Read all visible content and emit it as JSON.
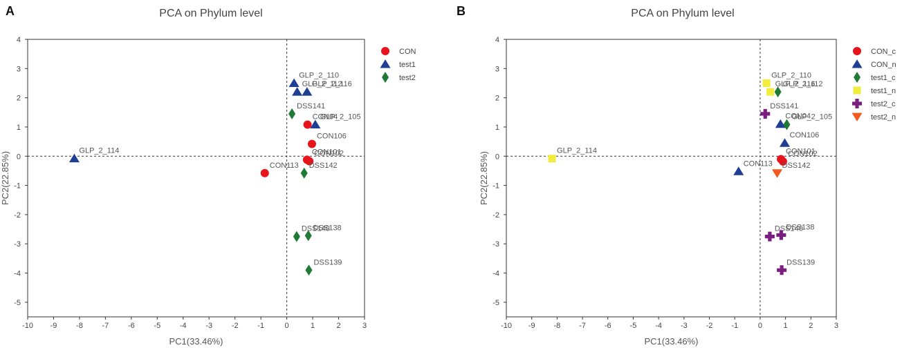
{
  "chart_data": [
    {
      "type": "scatter",
      "panel_letter": "A",
      "title": "PCA on Phylum level",
      "xlabel": "PC1(33.46%)",
      "ylabel": "PC2(22.85%)",
      "xlim": [
        -10,
        3
      ],
      "ylim": [
        -5.5,
        4
      ],
      "xticks": [
        -10,
        -9,
        -8,
        -7,
        -6,
        -5,
        -4,
        -3,
        -2,
        -1,
        0,
        1,
        2,
        3
      ],
      "yticks": [
        -5,
        -4,
        -3,
        -2,
        -1,
        0,
        1,
        2,
        3,
        4
      ],
      "reference_lines": {
        "x": 0,
        "y": 0
      },
      "legend_position": "top-right",
      "series": [
        {
          "name": "CON",
          "marker": "circle",
          "color": "#e8141b",
          "points": [
            {
              "label": "CON04",
              "x": 0.8,
              "y": 1.08
            },
            {
              "label": "CON106",
              "x": 0.97,
              "y": 0.42
            },
            {
              "label": "CON101",
              "x": 0.78,
              "y": -0.12
            },
            {
              "label": "CON102",
              "x": 0.87,
              "y": -0.17
            },
            {
              "label": "CON113",
              "x": -0.85,
              "y": -0.58
            }
          ]
        },
        {
          "name": "test1",
          "marker": "triangle",
          "color": "#1f3f95",
          "points": [
            {
              "label": "GLP_2_110",
              "x": 0.28,
              "y": 2.5
            },
            {
              "label": "GLP_2_112",
              "x": 0.4,
              "y": 2.2
            },
            {
              "label": "GLP_2_116",
              "x": 0.78,
              "y": 2.2
            },
            {
              "label": "GLP_2_105",
              "x": 1.1,
              "y": 1.08
            },
            {
              "label": "GLP_2_114",
              "x": -8.2,
              "y": -0.08
            }
          ]
        },
        {
          "name": "test2",
          "marker": "diamond",
          "color": "#1e7a34",
          "points": [
            {
              "label": "DSS141",
              "x": 0.2,
              "y": 1.45
            },
            {
              "label": "DSS142",
              "x": 0.67,
              "y": -0.58
            },
            {
              "label": "DSS140",
              "x": 0.38,
              "y": -2.75
            },
            {
              "label": "DSS138",
              "x": 0.83,
              "y": -2.72
            },
            {
              "label": "DSS139",
              "x": 0.85,
              "y": -3.9
            }
          ]
        }
      ]
    },
    {
      "type": "scatter",
      "panel_letter": "B",
      "title": "PCA on Phylum level",
      "xlabel": "PC1(33.46%)",
      "ylabel": "PC2(22.85%)",
      "xlim": [
        -10,
        3
      ],
      "ylim": [
        -5.5,
        4
      ],
      "xticks": [
        -10,
        -9,
        -8,
        -7,
        -6,
        -5,
        -4,
        -3,
        -2,
        -1,
        0,
        1,
        2,
        3
      ],
      "yticks": [
        -5,
        -4,
        -3,
        -2,
        -1,
        0,
        1,
        2,
        3,
        4
      ],
      "reference_lines": {
        "x": 0,
        "y": 0
      },
      "legend_position": "top-right",
      "series": [
        {
          "name": "CON_c",
          "marker": "circle",
          "color": "#e8141b",
          "points": [
            {
              "label": "CON101",
              "x": 0.82,
              "y": -0.1
            },
            {
              "label": "CON102",
              "x": 0.9,
              "y": -0.18
            }
          ]
        },
        {
          "name": "CON_n",
          "marker": "triangle",
          "color": "#1f3f95",
          "points": [
            {
              "label": "CON04",
              "x": 0.8,
              "y": 1.1
            },
            {
              "label": "CON106",
              "x": 0.97,
              "y": 0.45
            },
            {
              "label": "CON113",
              "x": -0.85,
              "y": -0.52
            }
          ]
        },
        {
          "name": "test1_c",
          "marker": "diamond",
          "color": "#1e7a34",
          "points": [
            {
              "label": "GLP_2_112",
              "x": 0.7,
              "y": 2.2
            },
            {
              "label": "GLP_2_105",
              "x": 1.05,
              "y": 1.08
            }
          ]
        },
        {
          "name": "test1_n",
          "marker": "square",
          "color": "#f2ec3c",
          "points": [
            {
              "label": "GLP_2_110",
              "x": 0.25,
              "y": 2.5
            },
            {
              "label": "GLP_2_116",
              "x": 0.4,
              "y": 2.2
            },
            {
              "label": "GLP_2_114",
              "x": -8.2,
              "y": -0.08
            }
          ]
        },
        {
          "name": "test2_c",
          "marker": "plus",
          "color": "#7a1f7f",
          "points": [
            {
              "label": "DSS141",
              "x": 0.2,
              "y": 1.45
            },
            {
              "label": "DSS140",
              "x": 0.38,
              "y": -2.75
            },
            {
              "label": "DSS138",
              "x": 0.83,
              "y": -2.7
            },
            {
              "label": "DSS139",
              "x": 0.85,
              "y": -3.9
            }
          ]
        },
        {
          "name": "test2_n",
          "marker": "triangle-down",
          "color": "#f25a1f",
          "points": [
            {
              "label": "DSS142",
              "x": 0.67,
              "y": -0.58
            }
          ]
        }
      ]
    }
  ]
}
